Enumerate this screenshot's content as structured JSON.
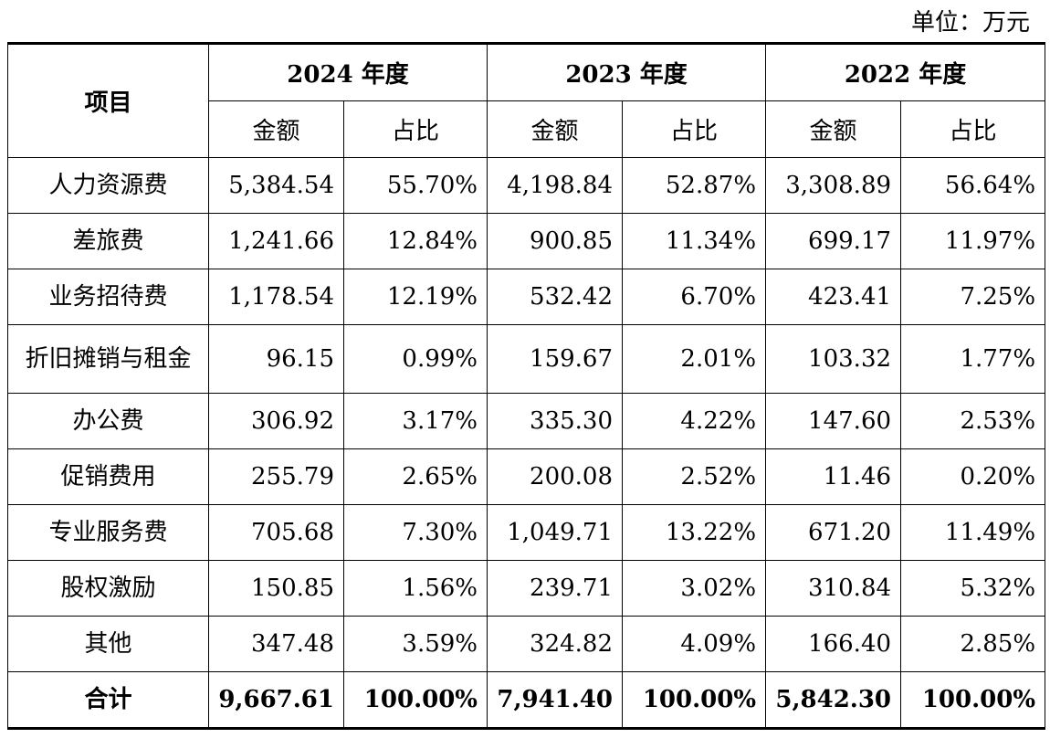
{
  "unit": "单位：万元",
  "header": {
    "item": "项目",
    "years": [
      "2024 年度",
      "2023 年度",
      "2022 年度"
    ],
    "amount": "金额",
    "ratio": "占比"
  },
  "rows": [
    {
      "name": "人力资源费",
      "v": [
        "5,384.54",
        "55.70%",
        "4,198.84",
        "52.87%",
        "3,308.89",
        "56.64%"
      ]
    },
    {
      "name": "差旅费",
      "v": [
        "1,241.66",
        "12.84%",
        "900.85",
        "11.34%",
        "699.17",
        "11.97%"
      ]
    },
    {
      "name": "业务招待费",
      "v": [
        "1,178.54",
        "12.19%",
        "532.42",
        "6.70%",
        "423.41",
        "7.25%"
      ]
    },
    {
      "name": "折旧摊销与租金",
      "v": [
        "96.15",
        "0.99%",
        "159.67",
        "2.01%",
        "103.32",
        "1.77%"
      ]
    },
    {
      "name": "办公费",
      "v": [
        "306.92",
        "3.17%",
        "335.30",
        "4.22%",
        "147.60",
        "2.53%"
      ]
    },
    {
      "name": "促销费用",
      "v": [
        "255.79",
        "2.65%",
        "200.08",
        "2.52%",
        "11.46",
        "0.20%"
      ]
    },
    {
      "name": "专业服务费",
      "v": [
        "705.68",
        "7.30%",
        "1,049.71",
        "13.22%",
        "671.20",
        "11.49%"
      ]
    },
    {
      "name": "股权激励",
      "v": [
        "150.85",
        "1.56%",
        "239.71",
        "3.02%",
        "310.84",
        "5.32%"
      ]
    },
    {
      "name": "其他",
      "v": [
        "347.48",
        "3.59%",
        "324.82",
        "4.09%",
        "166.40",
        "2.85%"
      ]
    }
  ],
  "total": {
    "name": "合计",
    "v": [
      "9,667.61",
      "100.00%",
      "7,941.40",
      "100.00%",
      "5,842.30",
      "100.00%"
    ]
  }
}
